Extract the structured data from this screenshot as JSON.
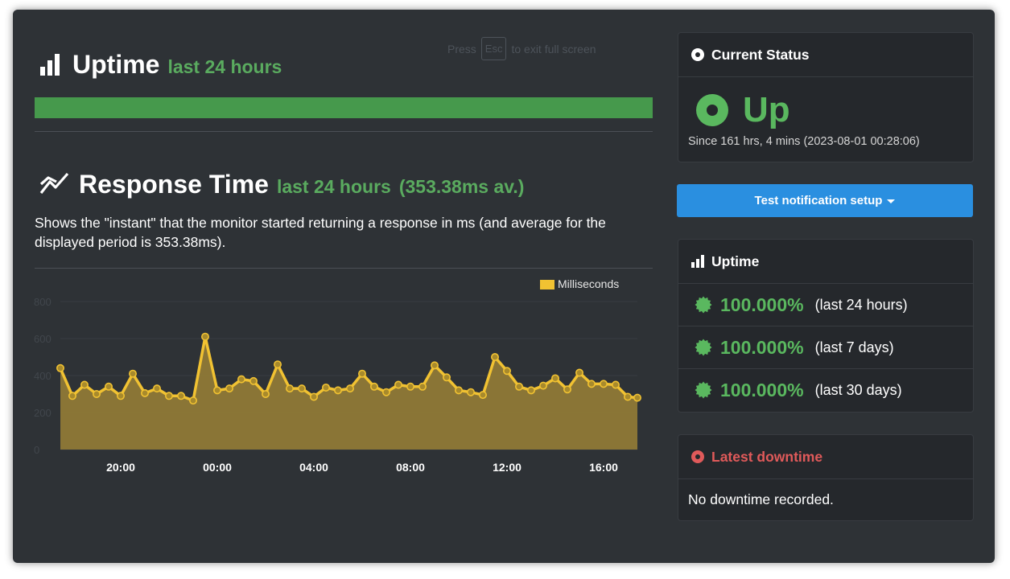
{
  "fullscreen_hint": {
    "prefix": "Press",
    "key": "Esc",
    "suffix": "to exit full screen"
  },
  "uptime_section": {
    "title": "Uptime",
    "subtitle": "last 24 hours",
    "bar_fraction": 1.0,
    "bar_color": "#46994c"
  },
  "response_section": {
    "title": "Response Time",
    "subtitle": "last 24 hours",
    "average": "(353.38ms av.)",
    "description": "Shows the \"instant\" that the monitor started returning a response in ms (and average for the displayed period is 353.38ms)."
  },
  "chart_data": {
    "type": "area",
    "title": "",
    "xlabel": "",
    "ylabel": "",
    "ylim": [
      0,
      800
    ],
    "yticks": [
      0,
      200,
      400,
      600,
      800
    ],
    "xlim": [
      -6.5,
      17.4
    ],
    "xticks": [
      {
        "value": -4,
        "label": "20:00"
      },
      {
        "value": 0,
        "label": "00:00"
      },
      {
        "value": 4,
        "label": "04:00"
      },
      {
        "value": 8,
        "label": "08:00"
      },
      {
        "value": 12,
        "label": "12:00"
      },
      {
        "value": 16,
        "label": "16:00"
      }
    ],
    "legend": {
      "position": "top-right",
      "label": "Milliseconds"
    },
    "grid": true,
    "series": [
      {
        "name": "Milliseconds",
        "color": "#f1c232",
        "x": [
          -6.5,
          -6.0,
          -5.5,
          -5.0,
          -4.5,
          -4.0,
          -3.5,
          -3.0,
          -2.5,
          -2.0,
          -1.5,
          -1.0,
          -0.5,
          0.0,
          0.5,
          1.0,
          1.5,
          2.0,
          2.5,
          3.0,
          3.5,
          4.0,
          4.5,
          5.0,
          5.5,
          6.0,
          6.5,
          7.0,
          7.5,
          8.0,
          8.5,
          9.0,
          9.5,
          10.0,
          10.5,
          11.0,
          11.5,
          12.0,
          12.5,
          13.0,
          13.5,
          14.0,
          14.5,
          15.0,
          15.5,
          16.0,
          16.5,
          17.0,
          17.4
        ],
        "values": [
          440,
          290,
          350,
          300,
          340,
          290,
          410,
          305,
          330,
          290,
          290,
          265,
          610,
          320,
          330,
          380,
          370,
          300,
          460,
          330,
          330,
          285,
          335,
          320,
          330,
          410,
          340,
          310,
          350,
          340,
          340,
          455,
          390,
          320,
          310,
          295,
          500,
          425,
          340,
          320,
          345,
          385,
          325,
          415,
          355,
          355,
          350,
          285,
          280
        ]
      }
    ]
  },
  "current_status": {
    "header": "Current Status",
    "state": "Up",
    "since": "Since 161 hrs, 4 mins (2023-08-01 00:28:06)",
    "color": "#5ab85f"
  },
  "notify_button": {
    "label": "Test notification setup"
  },
  "uptime_card": {
    "header": "Uptime",
    "rows": [
      {
        "percent": "100.000%",
        "period": "(last 24 hours)"
      },
      {
        "percent": "100.000%",
        "period": "(last 7 days)"
      },
      {
        "percent": "100.000%",
        "period": "(last 30 days)"
      }
    ]
  },
  "downtime_card": {
    "header": "Latest downtime",
    "message": "No downtime recorded.",
    "color": "#e05a5a"
  },
  "icons": {
    "bars": "bar-chart-icon",
    "line": "line-chart-icon",
    "status": "dot-circle-icon",
    "badge": "certificate-icon"
  }
}
